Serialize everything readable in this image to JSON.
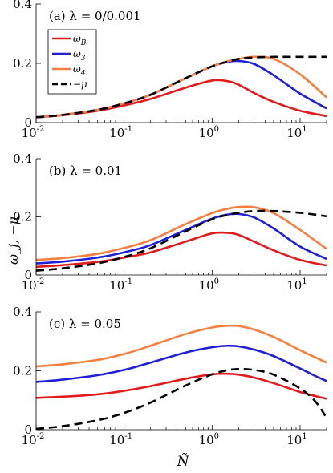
{
  "figure": {
    "ylabel": "ω_j, −μ",
    "xlabel": "Ñ"
  },
  "legend": {
    "items": [
      {
        "label": "ω_B",
        "base": "ω",
        "sub": "B",
        "color": "#e31a1c",
        "dashed": false
      },
      {
        "label": "ω_3",
        "base": "ω",
        "sub": "3",
        "color": "#1f1fd6",
        "dashed": false
      },
      {
        "label": "ω_4",
        "base": "ω",
        "sub": "4",
        "color": "#f57f3f",
        "dashed": false
      },
      {
        "label": "−μ",
        "base": "−μ",
        "sub": "",
        "color": "#000000",
        "dashed": true
      }
    ]
  },
  "chart_data": [
    {
      "type": "line",
      "title": "(a) λ = 0/0.001",
      "xscale": "log",
      "xlim": [
        0.01,
        20
      ],
      "ylim": [
        0,
        0.4
      ],
      "xticks": [
        0.01,
        0.1,
        1,
        10
      ],
      "yticks": [
        0,
        0.2,
        0.4
      ],
      "yticklabels": [
        "0",
        "0.2",
        "0.4"
      ],
      "x": [
        0.01,
        0.02,
        0.05,
        0.1,
        0.2,
        0.5,
        1,
        1.5,
        2,
        3,
        5,
        10,
        20
      ],
      "series": [
        {
          "name": "ω_B",
          "color": "#e31a1c",
          "values": [
            0.018,
            0.025,
            0.04,
            0.058,
            0.08,
            0.118,
            0.142,
            0.14,
            0.128,
            0.1,
            0.07,
            0.04,
            0.022
          ]
        },
        {
          "name": "ω_3",
          "color": "#1f1fd6",
          "values": [
            0.018,
            0.026,
            0.043,
            0.065,
            0.094,
            0.15,
            0.19,
            0.205,
            0.208,
            0.198,
            0.16,
            0.098,
            0.048
          ]
        },
        {
          "name": "ω_4",
          "color": "#f57f3f",
          "values": [
            0.018,
            0.026,
            0.043,
            0.065,
            0.094,
            0.15,
            0.19,
            0.207,
            0.215,
            0.222,
            0.215,
            0.163,
            0.085
          ]
        },
        {
          "name": "−μ",
          "color": "#000000",
          "dashed": true,
          "values": [
            0.018,
            0.026,
            0.043,
            0.065,
            0.094,
            0.15,
            0.19,
            0.206,
            0.215,
            0.22,
            0.222,
            0.222,
            0.222
          ]
        }
      ]
    },
    {
      "type": "line",
      "title": "(b) λ = 0.01",
      "xscale": "log",
      "xlim": [
        0.01,
        20
      ],
      "ylim": [
        0,
        0.4
      ],
      "xticks": [
        0.01,
        0.1,
        1,
        10
      ],
      "yticks": [
        0,
        0.2,
        0.4
      ],
      "yticklabels": [
        "0",
        "0.2",
        "0.4"
      ],
      "x": [
        0.01,
        0.02,
        0.05,
        0.1,
        0.2,
        0.5,
        1,
        1.5,
        2,
        3,
        5,
        10,
        20
      ],
      "series": [
        {
          "name": "ω_B",
          "color": "#e31a1c",
          "values": [
            0.028,
            0.034,
            0.045,
            0.06,
            0.078,
            0.115,
            0.143,
            0.145,
            0.138,
            0.115,
            0.085,
            0.052,
            0.033
          ]
        },
        {
          "name": "ω_3",
          "color": "#1f1fd6",
          "values": [
            0.04,
            0.046,
            0.06,
            0.078,
            0.103,
            0.155,
            0.194,
            0.208,
            0.21,
            0.198,
            0.16,
            0.098,
            0.055
          ]
        },
        {
          "name": "ω_4",
          "color": "#f57f3f",
          "values": [
            0.052,
            0.058,
            0.073,
            0.093,
            0.12,
            0.175,
            0.213,
            0.228,
            0.234,
            0.233,
            0.213,
            0.155,
            0.09
          ]
        },
        {
          "name": "−μ",
          "color": "#000000",
          "dashed": true,
          "values": [
            0.015,
            0.023,
            0.04,
            0.062,
            0.092,
            0.15,
            0.192,
            0.207,
            0.214,
            0.22,
            0.22,
            0.214,
            0.202
          ]
        }
      ]
    },
    {
      "type": "line",
      "title": "(c) λ = 0.05",
      "xscale": "log",
      "xlim": [
        0.01,
        20
      ],
      "ylim": [
        0,
        0.4
      ],
      "xticks": [
        0.01,
        0.1,
        1,
        10
      ],
      "yticks": [
        0,
        0.2,
        0.4
      ],
      "yticklabels": [
        "0",
        "0.2",
        "0.4"
      ],
      "x": [
        0.01,
        0.02,
        0.05,
        0.1,
        0.2,
        0.5,
        1,
        1.5,
        2,
        3,
        5,
        10,
        15,
        20
      ],
      "series": [
        {
          "name": "ω_B",
          "color": "#e31a1c",
          "values": [
            0.108,
            0.112,
            0.12,
            0.132,
            0.148,
            0.173,
            0.188,
            0.19,
            0.187,
            0.177,
            0.158,
            0.128,
            0.114,
            0.105
          ]
        },
        {
          "name": "ω_3",
          "color": "#1f1fd6",
          "values": [
            0.162,
            0.17,
            0.185,
            0.203,
            0.228,
            0.262,
            0.28,
            0.285,
            0.283,
            0.272,
            0.25,
            0.208,
            0.182,
            0.165
          ]
        },
        {
          "name": "ω_4",
          "color": "#f57f3f",
          "values": [
            0.215,
            0.222,
            0.237,
            0.257,
            0.285,
            0.325,
            0.347,
            0.353,
            0.352,
            0.34,
            0.315,
            0.27,
            0.245,
            0.228
          ]
        },
        {
          "name": "−μ",
          "color": "#000000",
          "dashed": true,
          "values": [
            0.003,
            0.012,
            0.032,
            0.057,
            0.092,
            0.15,
            0.188,
            0.202,
            0.206,
            0.203,
            0.187,
            0.14,
            0.095,
            0.04
          ]
        }
      ]
    }
  ]
}
